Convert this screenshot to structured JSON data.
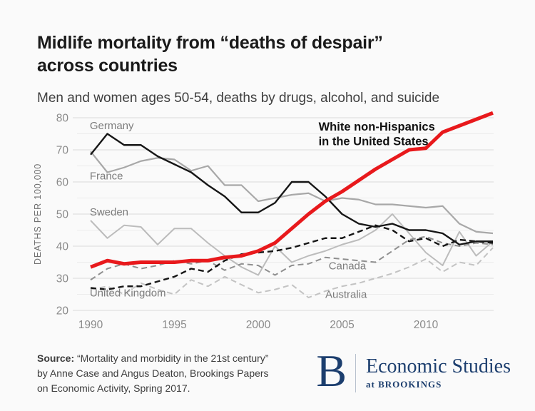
{
  "header": {
    "title_line1": "Midlife mortality from “deaths of despair”",
    "title_line2": "across countries",
    "subtitle": "Men and women ages 50-54, deaths by drugs, alcohol, and suicide"
  },
  "colors": {
    "accent_red": "#e8191c",
    "brand_navy": "#1c3e6e"
  },
  "chart_data": {
    "type": "line",
    "ylabel": "DEATHS PER 100,000",
    "ylim": [
      20,
      80
    ],
    "grid_step": 5,
    "y_ticks": [
      20,
      30,
      40,
      50,
      60,
      70,
      80
    ],
    "x_ticks": [
      1990,
      1995,
      2000,
      2005,
      2010
    ],
    "x": [
      1990,
      1991,
      1992,
      1993,
      1994,
      1995,
      1996,
      1997,
      1998,
      1999,
      2000,
      2001,
      2002,
      2003,
      2004,
      2005,
      2006,
      2007,
      2008,
      2009,
      2010,
      2011,
      2012,
      2013,
      2014
    ],
    "series": [
      {
        "id": "sweden",
        "name": "Sweden",
        "color": "#bcbcbc",
        "dash": "solid",
        "width": 2,
        "values": [
          48,
          42.5,
          46.5,
          46,
          40.5,
          45.5,
          45.5,
          41,
          37,
          33.5,
          31,
          40,
          35,
          37,
          38.5,
          40.5,
          42,
          45,
          50,
          44,
          38,
          34,
          44.5,
          37,
          41.5
        ]
      },
      {
        "id": "france",
        "name": "France",
        "color": "#a8a8a8",
        "dash": "solid",
        "width": 2.2,
        "values": [
          69.5,
          63,
          64.5,
          66.5,
          67.5,
          67,
          63.5,
          65,
          59,
          59,
          54,
          55,
          56,
          56.5,
          54,
          55,
          54.5,
          53,
          53,
          52.5,
          52,
          52.5,
          47,
          44.5,
          44
        ]
      },
      {
        "id": "australia",
        "name": "Australia",
        "color": "#c3c3c3",
        "dash": "dashed",
        "width": 2,
        "values": [
          26.5,
          27.5,
          25,
          28.5,
          26.5,
          25,
          29.5,
          27.5,
          30.5,
          28,
          25.5,
          26.5,
          28,
          24,
          26,
          27.5,
          28.5,
          30,
          31.5,
          33.5,
          36,
          32,
          35,
          34,
          39.5
        ]
      },
      {
        "id": "canada",
        "name": "Canada",
        "color": "#8f8f8f",
        "dash": "dashed",
        "width": 2,
        "values": [
          29.5,
          33,
          34.5,
          33,
          34,
          35.5,
          34.5,
          35.5,
          32.5,
          34.5,
          34,
          31,
          34,
          34.5,
          36.5,
          36,
          35.5,
          35,
          38.5,
          42,
          43,
          41,
          40,
          41,
          40.5
        ]
      },
      {
        "id": "germany",
        "name": "Germany",
        "color": "#161616",
        "dash": "solid",
        "width": 2.4,
        "values": [
          68.5,
          75,
          71.5,
          71.5,
          68,
          65.5,
          63,
          59,
          55.5,
          50.5,
          50.5,
          53.5,
          60,
          60,
          55.5,
          50,
          47,
          46,
          47,
          45,
          45,
          44,
          40.5,
          41.5,
          41.5
        ]
      },
      {
        "id": "united-kingdom",
        "name": "United Kingdom",
        "color": "#161616",
        "dash": "dashed",
        "width": 2.4,
        "values": [
          27,
          26.5,
          27.5,
          27.5,
          29,
          30.5,
          33,
          32,
          35.5,
          37.5,
          38,
          38.5,
          39.5,
          41,
          42.5,
          42.5,
          44.5,
          46.5,
          45,
          41.5,
          42.5,
          40,
          42,
          41.5,
          41
        ]
      },
      {
        "id": "usa",
        "name": "White non-Hispanics in the United States",
        "color": "#e8191c",
        "dash": "solid",
        "width": 5,
        "values": [
          33.5,
          35.5,
          34.5,
          35,
          35,
          35,
          35.5,
          35.5,
          36.5,
          37,
          38.5,
          41,
          45.5,
          50,
          54,
          57,
          60.5,
          64,
          67,
          70,
          70.5,
          75.5,
          77.5,
          79.5,
          81.5
        ]
      }
    ],
    "labels": [
      {
        "id": "germany",
        "text": "Germany",
        "year": 1989.95,
        "value": 76.4,
        "bold": false
      },
      {
        "id": "france",
        "text": "France",
        "year": 1989.95,
        "value": 60.8,
        "bold": false
      },
      {
        "id": "sweden",
        "text": "Sweden",
        "year": 1989.95,
        "value": 49.6,
        "bold": false
      },
      {
        "id": "united-kingdom",
        "text": "United Kingdom",
        "year": 1989.95,
        "value": 24.3,
        "bold": false
      },
      {
        "id": "canada",
        "text": "Canada",
        "year": 2004.2,
        "value": 32.8,
        "bold": false
      },
      {
        "id": "australia",
        "text": "Australia",
        "year": 2004.0,
        "value": 23.9,
        "bold": false
      },
      {
        "id": "usa-annotation-1",
        "text": "White non-Hispanics",
        "year": 2003.6,
        "value": 76.0,
        "bold": true
      },
      {
        "id": "usa-annotation-2",
        "text": "in the United States",
        "year": 2003.6,
        "value": 71.5,
        "bold": true
      }
    ]
  },
  "footer": {
    "source_label": "Source:",
    "source_lines": [
      "“Mortality and morbidity in the 21st century”",
      "by Anne Case and Angus Deaton, Brookings Papers",
      "on Economic Activity, Spring 2017."
    ],
    "logo": {
      "letter": "B",
      "program": "Economic Studies",
      "at": "at",
      "institution": "BROOKINGS"
    }
  }
}
